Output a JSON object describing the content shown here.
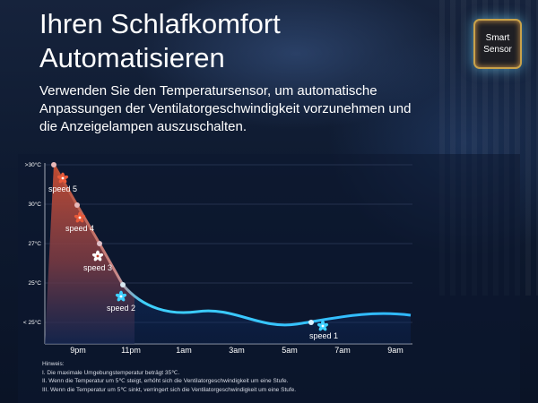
{
  "title": "Ihren Schlafkomfort Automatisieren",
  "subtitle": "Verwenden Sie den Temperatursensor, um automatische Anpassungen der Ventilatorgeschwindigkeit vorzunehmen und die Anzeigelampen auszuschalten.",
  "badge": {
    "line1": "Smart",
    "line2": "Sensor",
    "icon": "chip-icon"
  },
  "colors": {
    "hot": "#c0412a",
    "warm": "#d86a3e",
    "cool_line": "#35c4ff",
    "fan_icon_hot": "#e85a3a",
    "fan_icon_cool": "#3fd1ff"
  },
  "chart_data": {
    "type": "line",
    "y_tick_labels": [
      ">30°C",
      "30°C",
      "27°C",
      "25°C",
      "< 25°C"
    ],
    "x_tick_labels": [
      "9pm",
      "11pm",
      "1am",
      "3am",
      "5am",
      "7am",
      "9am"
    ],
    "speed_labels": [
      "speed 5",
      "speed 4",
      "speed 3",
      "speed 2",
      "speed 1"
    ],
    "grid": true,
    "legend": "none"
  },
  "notes": {
    "heading": "Hinweis:",
    "lines": [
      "I. Die maximale Umgebungstemperatur beträgt 35℃.",
      "II. Wenn die Temperatur um 5℃ steigt, erhöht sich die Ventilatorgeschwindigkeit um eine Stufe.",
      "III. Wenn die Temperatur um 5℃ sinkt, verringert sich die Ventilatorgeschwindigkeit um eine Stufe."
    ]
  }
}
